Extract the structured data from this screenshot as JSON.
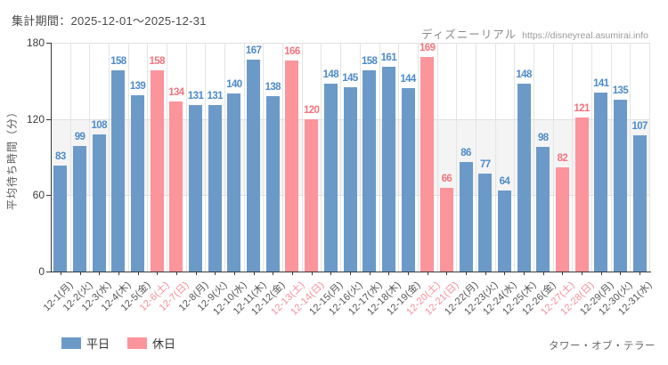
{
  "header": {
    "title": "集計期間：2025-12-01～2025-12-31",
    "site_name": "ディズニーリアル",
    "site_url": "https://disneyreal.asumirai.info"
  },
  "footer": {
    "attraction": "タワー・オブ・テラー"
  },
  "legend": [
    {
      "label": "平日",
      "type": "weekday"
    },
    {
      "label": "休日",
      "type": "holiday"
    }
  ],
  "chart_data": {
    "type": "bar",
    "title": "集計期間：2025-12-01～2025-12-31",
    "xlabel": "",
    "ylabel": "平均待ち時間（分）",
    "ylim": [
      0,
      180
    ],
    "yticks": [
      0,
      60,
      120,
      180
    ],
    "shaded_band": [
      60,
      120
    ],
    "grid": true,
    "legend_position": "bottom-left",
    "categories": [
      "12-1(月)",
      "12-2(火)",
      "12-3(水)",
      "12-4(木)",
      "12-5(金)",
      "12-6(土)",
      "12-7(日)",
      "12-8(月)",
      "12-9(火)",
      "12-10(水)",
      "12-11(木)",
      "12-12(金)",
      "12-13(土)",
      "12-14(日)",
      "12-15(月)",
      "12-16(火)",
      "12-17(水)",
      "12-18(木)",
      "12-19(金)",
      "12-20(土)",
      "12-21(日)",
      "12-22(月)",
      "12-23(火)",
      "12-24(水)",
      "12-25(木)",
      "12-26(金)",
      "12-27(土)",
      "12-28(日)",
      "12-29(月)",
      "12-30(火)",
      "12-31(水)"
    ],
    "values": [
      83,
      99,
      108,
      158,
      139,
      158,
      134,
      131,
      131,
      140,
      167,
      138,
      166,
      120,
      148,
      145,
      158,
      161,
      144,
      169,
      66,
      86,
      77,
      64,
      148,
      98,
      82,
      121,
      141,
      135,
      107
    ],
    "day_types": [
      "weekday",
      "weekday",
      "weekday",
      "weekday",
      "weekday",
      "holiday",
      "holiday",
      "weekday",
      "weekday",
      "weekday",
      "weekday",
      "weekday",
      "holiday",
      "holiday",
      "weekday",
      "weekday",
      "weekday",
      "weekday",
      "weekday",
      "holiday",
      "holiday",
      "weekday",
      "weekday",
      "weekday",
      "weekday",
      "weekday",
      "holiday",
      "holiday",
      "weekday",
      "weekday",
      "weekday"
    ],
    "colors": {
      "weekday_bar": "#6b9ac8",
      "holiday_bar": "#fb949b",
      "weekday_value_label": "#4d8bc8",
      "holiday_value_label": "#f3747e",
      "weekday_tick_label": "#555555",
      "holiday_tick_label": "#f48f99",
      "band": "#f4f4f4",
      "grid": "#e4e4e4",
      "axis": "#3a3a3a"
    }
  }
}
